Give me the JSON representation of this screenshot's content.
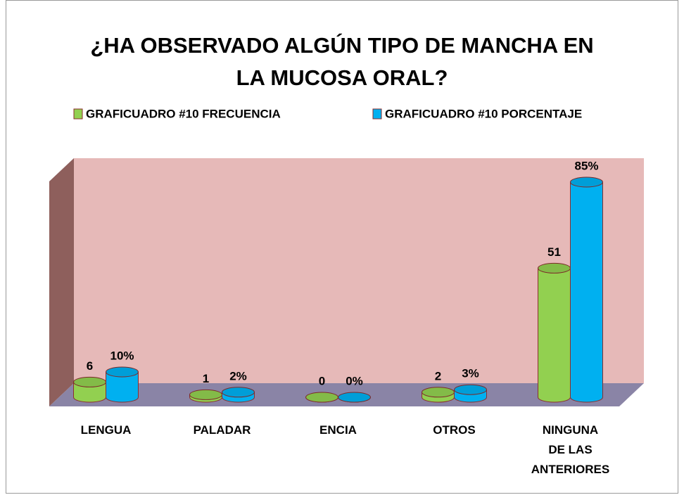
{
  "chart_data": {
    "type": "bar3d",
    "title": "¿HA OBSERVADO ALGÚN TIPO DE MANCHA EN\nLA MUCOSA ORAL?",
    "categories": [
      "LENGUA",
      "PALADAR",
      "ENCIA",
      "OTROS",
      "NINGUNA\nDE LAS\nANTERIORES"
    ],
    "series": [
      {
        "name": "GRAFICUADRO #10 FRECUENCIA",
        "color": "#92d050",
        "values": [
          6,
          1,
          0,
          2,
          51
        ]
      },
      {
        "name": "GRAFICUADRO #10 PORCENTAJE",
        "color": "#00b0f0",
        "values": [
          10,
          2,
          0,
          3,
          85
        ],
        "value_labels": [
          "10%",
          "2%",
          "0%",
          "3%",
          "85%"
        ]
      }
    ],
    "ylim": [
      0,
      100
    ],
    "legend": "top"
  }
}
